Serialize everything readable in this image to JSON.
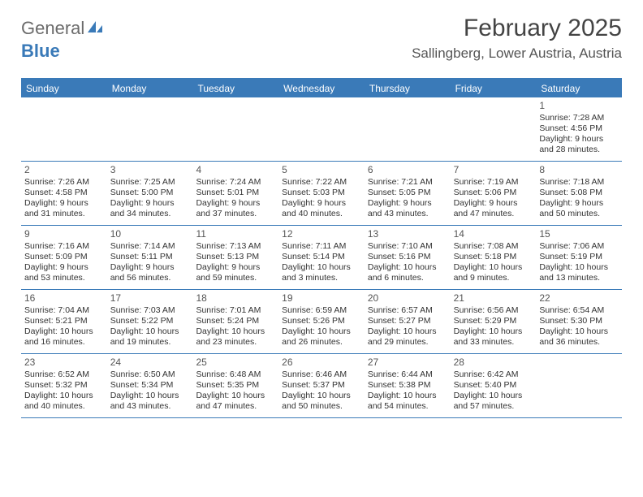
{
  "brand": {
    "part1": "General",
    "part2": "Blue"
  },
  "title": "February 2025",
  "location": "Sallingberg, Lower Austria, Austria",
  "colors": {
    "accent": "#3a7ab8",
    "text": "#333333",
    "bg": "#ffffff"
  },
  "weekdays": [
    "Sunday",
    "Monday",
    "Tuesday",
    "Wednesday",
    "Thursday",
    "Friday",
    "Saturday"
  ],
  "weeks": [
    [
      {
        "n": "",
        "sr": "",
        "ss": "",
        "dl": ""
      },
      {
        "n": "",
        "sr": "",
        "ss": "",
        "dl": ""
      },
      {
        "n": "",
        "sr": "",
        "ss": "",
        "dl": ""
      },
      {
        "n": "",
        "sr": "",
        "ss": "",
        "dl": ""
      },
      {
        "n": "",
        "sr": "",
        "ss": "",
        "dl": ""
      },
      {
        "n": "",
        "sr": "",
        "ss": "",
        "dl": ""
      },
      {
        "n": "1",
        "sr": "Sunrise: 7:28 AM",
        "ss": "Sunset: 4:56 PM",
        "dl": "Daylight: 9 hours and 28 minutes."
      }
    ],
    [
      {
        "n": "2",
        "sr": "Sunrise: 7:26 AM",
        "ss": "Sunset: 4:58 PM",
        "dl": "Daylight: 9 hours and 31 minutes."
      },
      {
        "n": "3",
        "sr": "Sunrise: 7:25 AM",
        "ss": "Sunset: 5:00 PM",
        "dl": "Daylight: 9 hours and 34 minutes."
      },
      {
        "n": "4",
        "sr": "Sunrise: 7:24 AM",
        "ss": "Sunset: 5:01 PM",
        "dl": "Daylight: 9 hours and 37 minutes."
      },
      {
        "n": "5",
        "sr": "Sunrise: 7:22 AM",
        "ss": "Sunset: 5:03 PM",
        "dl": "Daylight: 9 hours and 40 minutes."
      },
      {
        "n": "6",
        "sr": "Sunrise: 7:21 AM",
        "ss": "Sunset: 5:05 PM",
        "dl": "Daylight: 9 hours and 43 minutes."
      },
      {
        "n": "7",
        "sr": "Sunrise: 7:19 AM",
        "ss": "Sunset: 5:06 PM",
        "dl": "Daylight: 9 hours and 47 minutes."
      },
      {
        "n": "8",
        "sr": "Sunrise: 7:18 AM",
        "ss": "Sunset: 5:08 PM",
        "dl": "Daylight: 9 hours and 50 minutes."
      }
    ],
    [
      {
        "n": "9",
        "sr": "Sunrise: 7:16 AM",
        "ss": "Sunset: 5:09 PM",
        "dl": "Daylight: 9 hours and 53 minutes."
      },
      {
        "n": "10",
        "sr": "Sunrise: 7:14 AM",
        "ss": "Sunset: 5:11 PM",
        "dl": "Daylight: 9 hours and 56 minutes."
      },
      {
        "n": "11",
        "sr": "Sunrise: 7:13 AM",
        "ss": "Sunset: 5:13 PM",
        "dl": "Daylight: 9 hours and 59 minutes."
      },
      {
        "n": "12",
        "sr": "Sunrise: 7:11 AM",
        "ss": "Sunset: 5:14 PM",
        "dl": "Daylight: 10 hours and 3 minutes."
      },
      {
        "n": "13",
        "sr": "Sunrise: 7:10 AM",
        "ss": "Sunset: 5:16 PM",
        "dl": "Daylight: 10 hours and 6 minutes."
      },
      {
        "n": "14",
        "sr": "Sunrise: 7:08 AM",
        "ss": "Sunset: 5:18 PM",
        "dl": "Daylight: 10 hours and 9 minutes."
      },
      {
        "n": "15",
        "sr": "Sunrise: 7:06 AM",
        "ss": "Sunset: 5:19 PM",
        "dl": "Daylight: 10 hours and 13 minutes."
      }
    ],
    [
      {
        "n": "16",
        "sr": "Sunrise: 7:04 AM",
        "ss": "Sunset: 5:21 PM",
        "dl": "Daylight: 10 hours and 16 minutes."
      },
      {
        "n": "17",
        "sr": "Sunrise: 7:03 AM",
        "ss": "Sunset: 5:22 PM",
        "dl": "Daylight: 10 hours and 19 minutes."
      },
      {
        "n": "18",
        "sr": "Sunrise: 7:01 AM",
        "ss": "Sunset: 5:24 PM",
        "dl": "Daylight: 10 hours and 23 minutes."
      },
      {
        "n": "19",
        "sr": "Sunrise: 6:59 AM",
        "ss": "Sunset: 5:26 PM",
        "dl": "Daylight: 10 hours and 26 minutes."
      },
      {
        "n": "20",
        "sr": "Sunrise: 6:57 AM",
        "ss": "Sunset: 5:27 PM",
        "dl": "Daylight: 10 hours and 29 minutes."
      },
      {
        "n": "21",
        "sr": "Sunrise: 6:56 AM",
        "ss": "Sunset: 5:29 PM",
        "dl": "Daylight: 10 hours and 33 minutes."
      },
      {
        "n": "22",
        "sr": "Sunrise: 6:54 AM",
        "ss": "Sunset: 5:30 PM",
        "dl": "Daylight: 10 hours and 36 minutes."
      }
    ],
    [
      {
        "n": "23",
        "sr": "Sunrise: 6:52 AM",
        "ss": "Sunset: 5:32 PM",
        "dl": "Daylight: 10 hours and 40 minutes."
      },
      {
        "n": "24",
        "sr": "Sunrise: 6:50 AM",
        "ss": "Sunset: 5:34 PM",
        "dl": "Daylight: 10 hours and 43 minutes."
      },
      {
        "n": "25",
        "sr": "Sunrise: 6:48 AM",
        "ss": "Sunset: 5:35 PM",
        "dl": "Daylight: 10 hours and 47 minutes."
      },
      {
        "n": "26",
        "sr": "Sunrise: 6:46 AM",
        "ss": "Sunset: 5:37 PM",
        "dl": "Daylight: 10 hours and 50 minutes."
      },
      {
        "n": "27",
        "sr": "Sunrise: 6:44 AM",
        "ss": "Sunset: 5:38 PM",
        "dl": "Daylight: 10 hours and 54 minutes."
      },
      {
        "n": "28",
        "sr": "Sunrise: 6:42 AM",
        "ss": "Sunset: 5:40 PM",
        "dl": "Daylight: 10 hours and 57 minutes."
      },
      {
        "n": "",
        "sr": "",
        "ss": "",
        "dl": ""
      }
    ]
  ]
}
